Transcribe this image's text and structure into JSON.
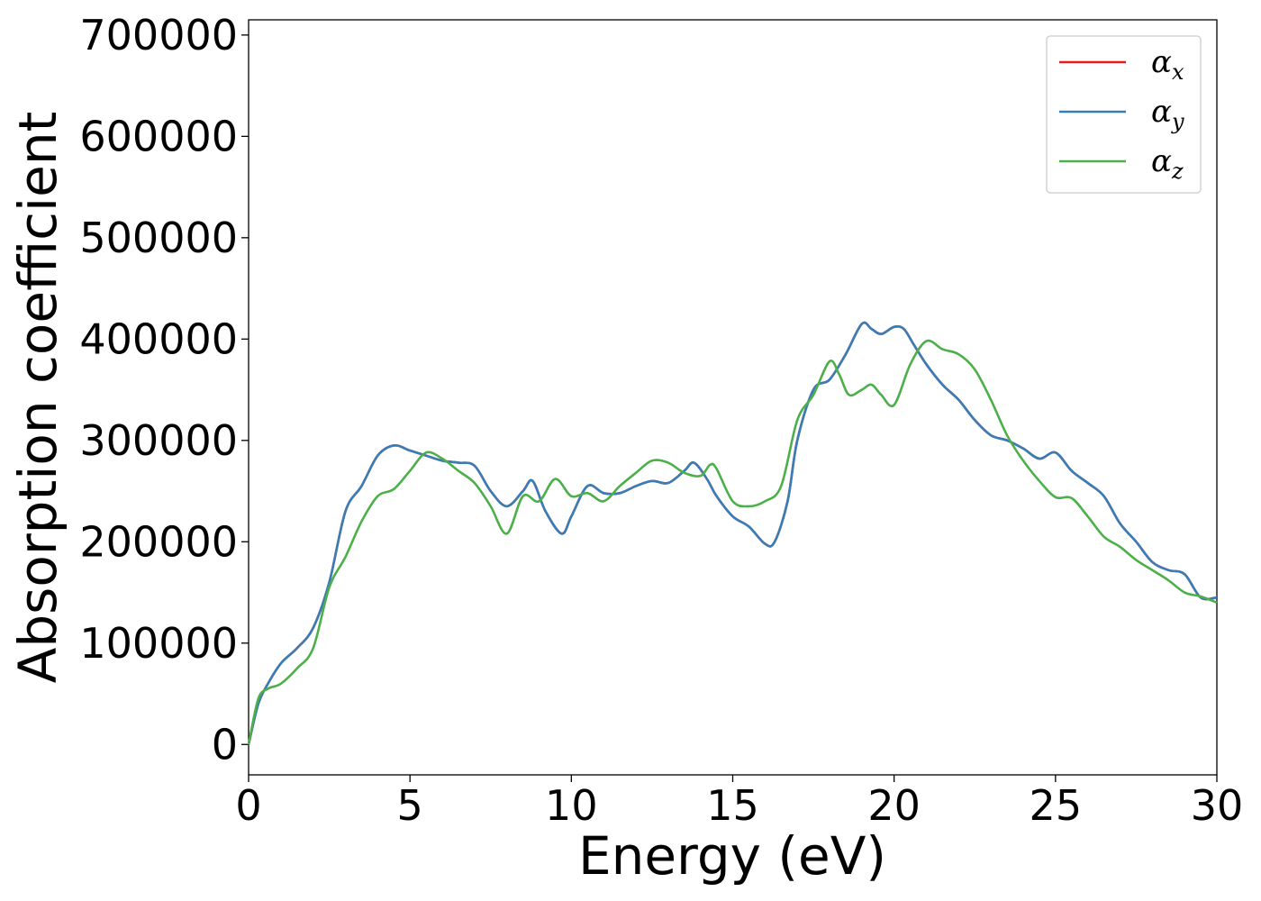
{
  "chart_data": {
    "type": "line",
    "xlabel": "Energy (eV)",
    "ylabel": "Absorption coefficient",
    "xlim": [
      0,
      30
    ],
    "ylim": [
      -30000,
      715000
    ],
    "xticks": [
      0,
      5,
      10,
      15,
      20,
      25,
      30
    ],
    "xtick_labels": [
      "0",
      "5",
      "10",
      "15",
      "20",
      "25",
      "30"
    ],
    "yticks": [
      0,
      100000,
      200000,
      300000,
      400000,
      500000,
      600000,
      700000
    ],
    "ytick_labels": [
      "0",
      "100000",
      "200000",
      "300000",
      "400000",
      "500000",
      "600000",
      "700000"
    ],
    "grid": false,
    "legend_position": "top-right",
    "series": [
      {
        "name": "α",
        "subscript": "x",
        "color": "#e41a1c",
        "x": [
          0,
          0.3,
          0.6,
          1,
          1.5,
          2,
          2.5,
          3,
          3.5,
          4,
          4.5,
          5,
          5.5,
          6,
          6.5,
          7,
          7.5,
          8,
          8.5,
          8.8,
          9.2,
          9.7,
          10,
          10.5,
          11,
          11.5,
          12,
          12.5,
          13,
          13.5,
          13.8,
          14.2,
          14.5,
          15,
          15.5,
          16,
          16.3,
          16.7,
          17,
          17.5,
          18,
          18.5,
          19,
          19.3,
          19.6,
          20,
          20.3,
          20.6,
          21,
          21.5,
          22,
          22.5,
          23,
          23.5,
          24,
          24.5,
          25,
          25.5,
          26,
          26.5,
          27,
          27.5,
          28,
          28.5,
          29,
          29.5,
          30
        ],
        "values": [
          0,
          40000,
          60000,
          80000,
          95000,
          115000,
          160000,
          230000,
          255000,
          285000,
          295000,
          290000,
          285000,
          280000,
          278000,
          275000,
          250000,
          235000,
          250000,
          260000,
          230000,
          208000,
          225000,
          255000,
          248000,
          248000,
          255000,
          260000,
          258000,
          270000,
          278000,
          262000,
          245000,
          225000,
          215000,
          198000,
          200000,
          240000,
          300000,
          350000,
          360000,
          385000,
          415000,
          410000,
          405000,
          412000,
          410000,
          395000,
          375000,
          355000,
          340000,
          320000,
          305000,
          300000,
          292000,
          282000,
          288000,
          270000,
          258000,
          245000,
          218000,
          200000,
          180000,
          172000,
          168000,
          145000,
          145000
        ]
      },
      {
        "name": "α",
        "subscript": "y",
        "color": "#377eb8",
        "x": [
          0,
          0.3,
          0.6,
          1,
          1.5,
          2,
          2.5,
          3,
          3.5,
          4,
          4.5,
          5,
          5.5,
          6,
          6.5,
          7,
          7.5,
          8,
          8.5,
          8.8,
          9.2,
          9.7,
          10,
          10.5,
          11,
          11.5,
          12,
          12.5,
          13,
          13.5,
          13.8,
          14.2,
          14.5,
          15,
          15.5,
          16,
          16.3,
          16.7,
          17,
          17.5,
          18,
          18.5,
          19,
          19.3,
          19.6,
          20,
          20.3,
          20.6,
          21,
          21.5,
          22,
          22.5,
          23,
          23.5,
          24,
          24.5,
          25,
          25.5,
          26,
          26.5,
          27,
          27.5,
          28,
          28.5,
          29,
          29.5,
          30
        ],
        "values": [
          0,
          40000,
          60000,
          80000,
          95000,
          115000,
          160000,
          230000,
          255000,
          285000,
          295000,
          290000,
          285000,
          280000,
          278000,
          275000,
          250000,
          235000,
          250000,
          260000,
          230000,
          208000,
          225000,
          255000,
          248000,
          248000,
          255000,
          260000,
          258000,
          270000,
          278000,
          262000,
          245000,
          225000,
          215000,
          198000,
          200000,
          240000,
          300000,
          350000,
          360000,
          385000,
          415000,
          410000,
          405000,
          412000,
          410000,
          395000,
          375000,
          355000,
          340000,
          320000,
          305000,
          300000,
          292000,
          282000,
          288000,
          270000,
          258000,
          245000,
          218000,
          200000,
          180000,
          172000,
          168000,
          145000,
          145000
        ]
      },
      {
        "name": "α",
        "subscript": "z",
        "color": "#4daf4a",
        "x": [
          0,
          0.3,
          0.6,
          1,
          1.5,
          2,
          2.5,
          3,
          3.5,
          4,
          4.5,
          5,
          5.5,
          6,
          6.5,
          7,
          7.5,
          8,
          8.5,
          9,
          9.5,
          10,
          10.5,
          11,
          11.5,
          12,
          12.5,
          13,
          13.5,
          14,
          14.3,
          14.5,
          15,
          15.5,
          16,
          16.5,
          17,
          17.5,
          18,
          18.3,
          18.6,
          19,
          19.3,
          19.6,
          20,
          20.5,
          21,
          21.5,
          22,
          22.5,
          23,
          23.5,
          24,
          24.5,
          25,
          25.5,
          26,
          26.5,
          27,
          27.5,
          28,
          28.5,
          29,
          29.5,
          30
        ],
        "values": [
          0,
          45000,
          55000,
          60000,
          75000,
          95000,
          155000,
          185000,
          220000,
          245000,
          252000,
          270000,
          288000,
          282000,
          270000,
          258000,
          235000,
          208000,
          245000,
          240000,
          262000,
          245000,
          248000,
          240000,
          255000,
          268000,
          280000,
          278000,
          268000,
          265000,
          276000,
          272000,
          240000,
          235000,
          240000,
          255000,
          320000,
          345000,
          378000,
          365000,
          345000,
          350000,
          355000,
          345000,
          335000,
          375000,
          398000,
          390000,
          385000,
          370000,
          340000,
          305000,
          280000,
          260000,
          244000,
          243000,
          225000,
          205000,
          195000,
          182000,
          172000,
          162000,
          150000,
          146000,
          140000
        ]
      }
    ]
  }
}
